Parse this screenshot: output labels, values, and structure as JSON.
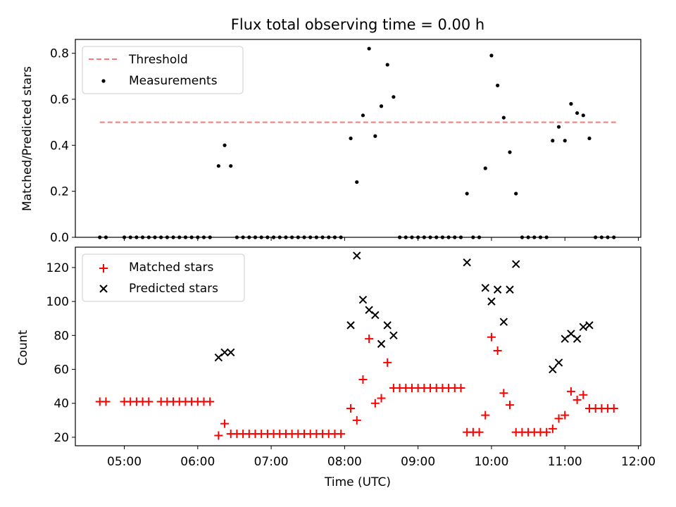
{
  "title": "Flux total observing time = 0.00 h",
  "colors": {
    "threshold": "#ff7777",
    "measurements": "#000000",
    "matched": "#ff0000",
    "predicted": "#000000"
  },
  "chart_data": [
    {
      "type": "scatter",
      "panel": "top",
      "xlabel": "",
      "ylabel": "Matched/Predicted stars",
      "xlim": [
        "04:20",
        "12:02"
      ],
      "ylim": [
        0,
        0.86
      ],
      "yticks": [
        "0.0",
        "0.2",
        "0.4",
        "0.6",
        "0.8"
      ],
      "legend": "top-left",
      "grid": false,
      "series": [
        {
          "name": "Threshold",
          "style": "dashed-line",
          "x": [
            "04:40",
            "11:43"
          ],
          "y": [
            0.5,
            0.5
          ]
        },
        {
          "name": "Measurements",
          "style": "dot",
          "points": [
            [
              "04:40",
              0
            ],
            [
              "04:45",
              0
            ],
            [
              "05:00",
              0
            ],
            [
              "05:05",
              0
            ],
            [
              "05:10",
              0
            ],
            [
              "05:15",
              0
            ],
            [
              "05:20",
              0
            ],
            [
              "05:25",
              0
            ],
            [
              "05:30",
              0
            ],
            [
              "05:35",
              0
            ],
            [
              "05:40",
              0
            ],
            [
              "05:45",
              0
            ],
            [
              "05:50",
              0
            ],
            [
              "05:55",
              0
            ],
            [
              "06:00",
              0
            ],
            [
              "06:05",
              0
            ],
            [
              "06:10",
              0
            ],
            [
              "06:17",
              0.31
            ],
            [
              "06:22",
              0.4
            ],
            [
              "06:27",
              0.31
            ],
            [
              "06:32",
              0
            ],
            [
              "06:37",
              0
            ],
            [
              "06:42",
              0
            ],
            [
              "06:47",
              0
            ],
            [
              "06:52",
              0
            ],
            [
              "06:57",
              0
            ],
            [
              "07:02",
              0
            ],
            [
              "07:07",
              0
            ],
            [
              "07:12",
              0
            ],
            [
              "07:17",
              0
            ],
            [
              "07:22",
              0
            ],
            [
              "07:27",
              0
            ],
            [
              "07:32",
              0
            ],
            [
              "07:37",
              0
            ],
            [
              "07:42",
              0
            ],
            [
              "07:47",
              0
            ],
            [
              "07:52",
              0
            ],
            [
              "07:57",
              0
            ],
            [
              "08:05",
              0.43
            ],
            [
              "08:10",
              0.24
            ],
            [
              "08:15",
              0.53
            ],
            [
              "08:20",
              0.82
            ],
            [
              "08:25",
              0.44
            ],
            [
              "08:30",
              0.57
            ],
            [
              "08:35",
              0.75
            ],
            [
              "08:40",
              0.61
            ],
            [
              "08:45",
              0
            ],
            [
              "08:50",
              0
            ],
            [
              "08:55",
              0
            ],
            [
              "09:00",
              0
            ],
            [
              "09:05",
              0
            ],
            [
              "09:10",
              0
            ],
            [
              "09:15",
              0
            ],
            [
              "09:20",
              0
            ],
            [
              "09:25",
              0
            ],
            [
              "09:30",
              0
            ],
            [
              "09:35",
              0
            ],
            [
              "09:40",
              0.19
            ],
            [
              "09:45",
              0
            ],
            [
              "09:50",
              0
            ],
            [
              "09:55",
              0.3
            ],
            [
              "10:00",
              0.79
            ],
            [
              "10:05",
              0.66
            ],
            [
              "10:10",
              0.52
            ],
            [
              "10:15",
              0.37
            ],
            [
              "10:20",
              0.19
            ],
            [
              "10:25",
              0
            ],
            [
              "10:30",
              0
            ],
            [
              "10:35",
              0
            ],
            [
              "10:40",
              0
            ],
            [
              "10:45",
              0
            ],
            [
              "10:50",
              0.42
            ],
            [
              "10:55",
              0.48
            ],
            [
              "11:00",
              0.42
            ],
            [
              "11:05",
              0.58
            ],
            [
              "11:10",
              0.54
            ],
            [
              "11:15",
              0.53
            ],
            [
              "11:20",
              0.43
            ],
            [
              "11:25",
              0
            ],
            [
              "11:30",
              0
            ],
            [
              "11:35",
              0
            ],
            [
              "11:40",
              0
            ]
          ]
        }
      ]
    },
    {
      "type": "scatter",
      "panel": "bottom",
      "xlabel": "Time (UTC)",
      "ylabel": "Count",
      "xlim": [
        "04:20",
        "12:02"
      ],
      "xticks": [
        "05:00",
        "06:00",
        "07:00",
        "08:00",
        "09:00",
        "10:00",
        "11:00",
        "12:00"
      ],
      "ylim": [
        15,
        132
      ],
      "yticks": [
        "20",
        "40",
        "60",
        "80",
        "100",
        "120"
      ],
      "legend": "top-left",
      "grid": false,
      "series": [
        {
          "name": "Matched stars",
          "style": "plus",
          "points": [
            [
              "04:40",
              41
            ],
            [
              "04:45",
              41
            ],
            [
              "05:00",
              41
            ],
            [
              "05:05",
              41
            ],
            [
              "05:10",
              41
            ],
            [
              "05:15",
              41
            ],
            [
              "05:20",
              41
            ],
            [
              "05:30",
              41
            ],
            [
              "05:35",
              41
            ],
            [
              "05:40",
              41
            ],
            [
              "05:45",
              41
            ],
            [
              "05:50",
              41
            ],
            [
              "05:55",
              41
            ],
            [
              "06:00",
              41
            ],
            [
              "06:05",
              41
            ],
            [
              "06:10",
              41
            ],
            [
              "06:17",
              21
            ],
            [
              "06:22",
              28
            ],
            [
              "06:27",
              22
            ],
            [
              "06:32",
              22
            ],
            [
              "06:37",
              22
            ],
            [
              "06:42",
              22
            ],
            [
              "06:47",
              22
            ],
            [
              "06:52",
              22
            ],
            [
              "06:57",
              22
            ],
            [
              "07:02",
              22
            ],
            [
              "07:07",
              22
            ],
            [
              "07:12",
              22
            ],
            [
              "07:17",
              22
            ],
            [
              "07:22",
              22
            ],
            [
              "07:27",
              22
            ],
            [
              "07:32",
              22
            ],
            [
              "07:37",
              22
            ],
            [
              "07:42",
              22
            ],
            [
              "07:47",
              22
            ],
            [
              "07:52",
              22
            ],
            [
              "07:57",
              22
            ],
            [
              "08:05",
              37
            ],
            [
              "08:10",
              30
            ],
            [
              "08:15",
              54
            ],
            [
              "08:20",
              78
            ],
            [
              "08:25",
              40
            ],
            [
              "08:30",
              43
            ],
            [
              "08:35",
              64
            ],
            [
              "08:40",
              49
            ],
            [
              "08:45",
              49
            ],
            [
              "08:50",
              49
            ],
            [
              "08:55",
              49
            ],
            [
              "09:00",
              49
            ],
            [
              "09:05",
              49
            ],
            [
              "09:10",
              49
            ],
            [
              "09:15",
              49
            ],
            [
              "09:20",
              49
            ],
            [
              "09:25",
              49
            ],
            [
              "09:30",
              49
            ],
            [
              "09:35",
              49
            ],
            [
              "09:40",
              23
            ],
            [
              "09:45",
              23
            ],
            [
              "09:50",
              23
            ],
            [
              "09:55",
              33
            ],
            [
              "10:00",
              79
            ],
            [
              "10:05",
              71
            ],
            [
              "10:10",
              46
            ],
            [
              "10:15",
              39
            ],
            [
              "10:20",
              23
            ],
            [
              "10:25",
              23
            ],
            [
              "10:30",
              23
            ],
            [
              "10:35",
              23
            ],
            [
              "10:40",
              23
            ],
            [
              "10:45",
              23
            ],
            [
              "10:50",
              25
            ],
            [
              "10:55",
              31
            ],
            [
              "11:00",
              33
            ],
            [
              "11:05",
              47
            ],
            [
              "11:10",
              42
            ],
            [
              "11:15",
              45
            ],
            [
              "11:20",
              37
            ],
            [
              "11:25",
              37
            ],
            [
              "11:30",
              37
            ],
            [
              "11:35",
              37
            ],
            [
              "11:40",
              37
            ]
          ]
        },
        {
          "name": "Predicted stars",
          "style": "x",
          "points": [
            [
              "06:17",
              67
            ],
            [
              "06:22",
              70
            ],
            [
              "06:27",
              70
            ],
            [
              "08:05",
              86
            ],
            [
              "08:10",
              127
            ],
            [
              "08:15",
              101
            ],
            [
              "08:20",
              95
            ],
            [
              "08:25",
              92
            ],
            [
              "08:30",
              75
            ],
            [
              "08:35",
              86
            ],
            [
              "08:40",
              80
            ],
            [
              "09:40",
              123
            ],
            [
              "09:55",
              108
            ],
            [
              "10:00",
              100
            ],
            [
              "10:05",
              107
            ],
            [
              "10:10",
              88
            ],
            [
              "10:15",
              107
            ],
            [
              "10:20",
              122
            ],
            [
              "10:50",
              60
            ],
            [
              "10:55",
              64
            ],
            [
              "11:00",
              78
            ],
            [
              "11:05",
              81
            ],
            [
              "11:10",
              78
            ],
            [
              "11:15",
              85
            ],
            [
              "11:20",
              86
            ]
          ]
        }
      ]
    }
  ]
}
